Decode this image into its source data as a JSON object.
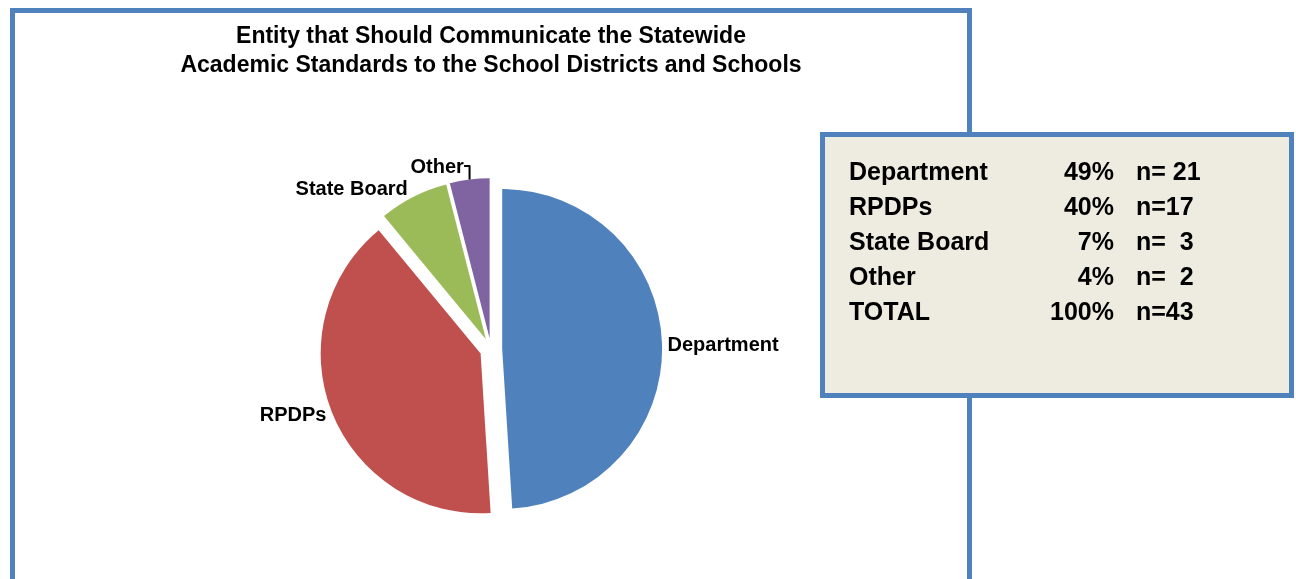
{
  "chart_data": [
    {
      "type": "pie",
      "title": "Entity that Should Communicate the Statewide\nAcademic Standards to the School Districts and Schools",
      "categories": [
        "Department",
        "RPDPs",
        "State Board",
        "Other"
      ],
      "values": [
        49,
        40,
        7,
        4
      ],
      "colors": [
        "#4f81bd",
        "#c0504d",
        "#9bbb59",
        "#8064a2"
      ],
      "legend": false
    },
    {
      "type": "other",
      "annotations": [
        "Department",
        "49%",
        "n= 21",
        "RPDPs",
        "40%",
        "n=17",
        "State Board",
        "7%",
        "n=  3",
        "Other",
        "4%",
        "n=  2",
        "TOTAL",
        "100%",
        "n=43"
      ]
    }
  ]
}
